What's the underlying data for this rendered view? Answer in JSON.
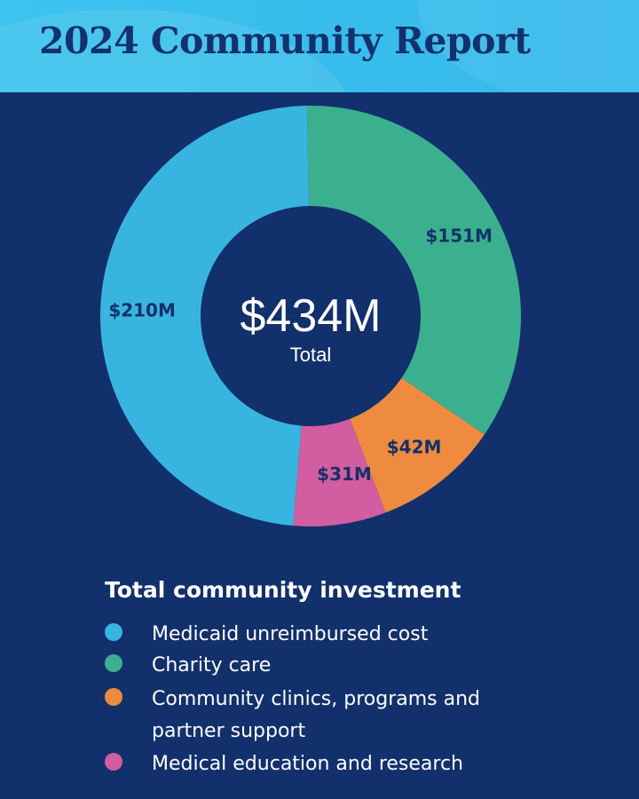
{
  "header": {
    "title": "2024 Community Report"
  },
  "chart_data": {
    "type": "pie",
    "center_value": "$434M",
    "center_label": "Total",
    "legend_title": "Total community investment",
    "categories": [
      "Charity care",
      "Community clinics, programs and partner support",
      "Medical education and research",
      "Medicaid unreimbursed cost"
    ],
    "values": [
      151,
      42,
      31,
      210
    ],
    "value_labels": [
      "$151M",
      "$42M",
      "$31M",
      "$210M"
    ],
    "colors": [
      "#3bb08e",
      "#ef8b40",
      "#d25da0",
      "#38b4e0"
    ],
    "unit": "$M"
  },
  "legend": {
    "items": [
      {
        "label": "Medicaid unreimbursed cost",
        "color": "#38b4e0"
      },
      {
        "label": "Charity care",
        "color": "#3bb08e"
      },
      {
        "label": "Community clinics, programs and partner support",
        "color": "#ef8b40"
      },
      {
        "label": "Medical education and research",
        "color": "#d25da0"
      }
    ]
  }
}
